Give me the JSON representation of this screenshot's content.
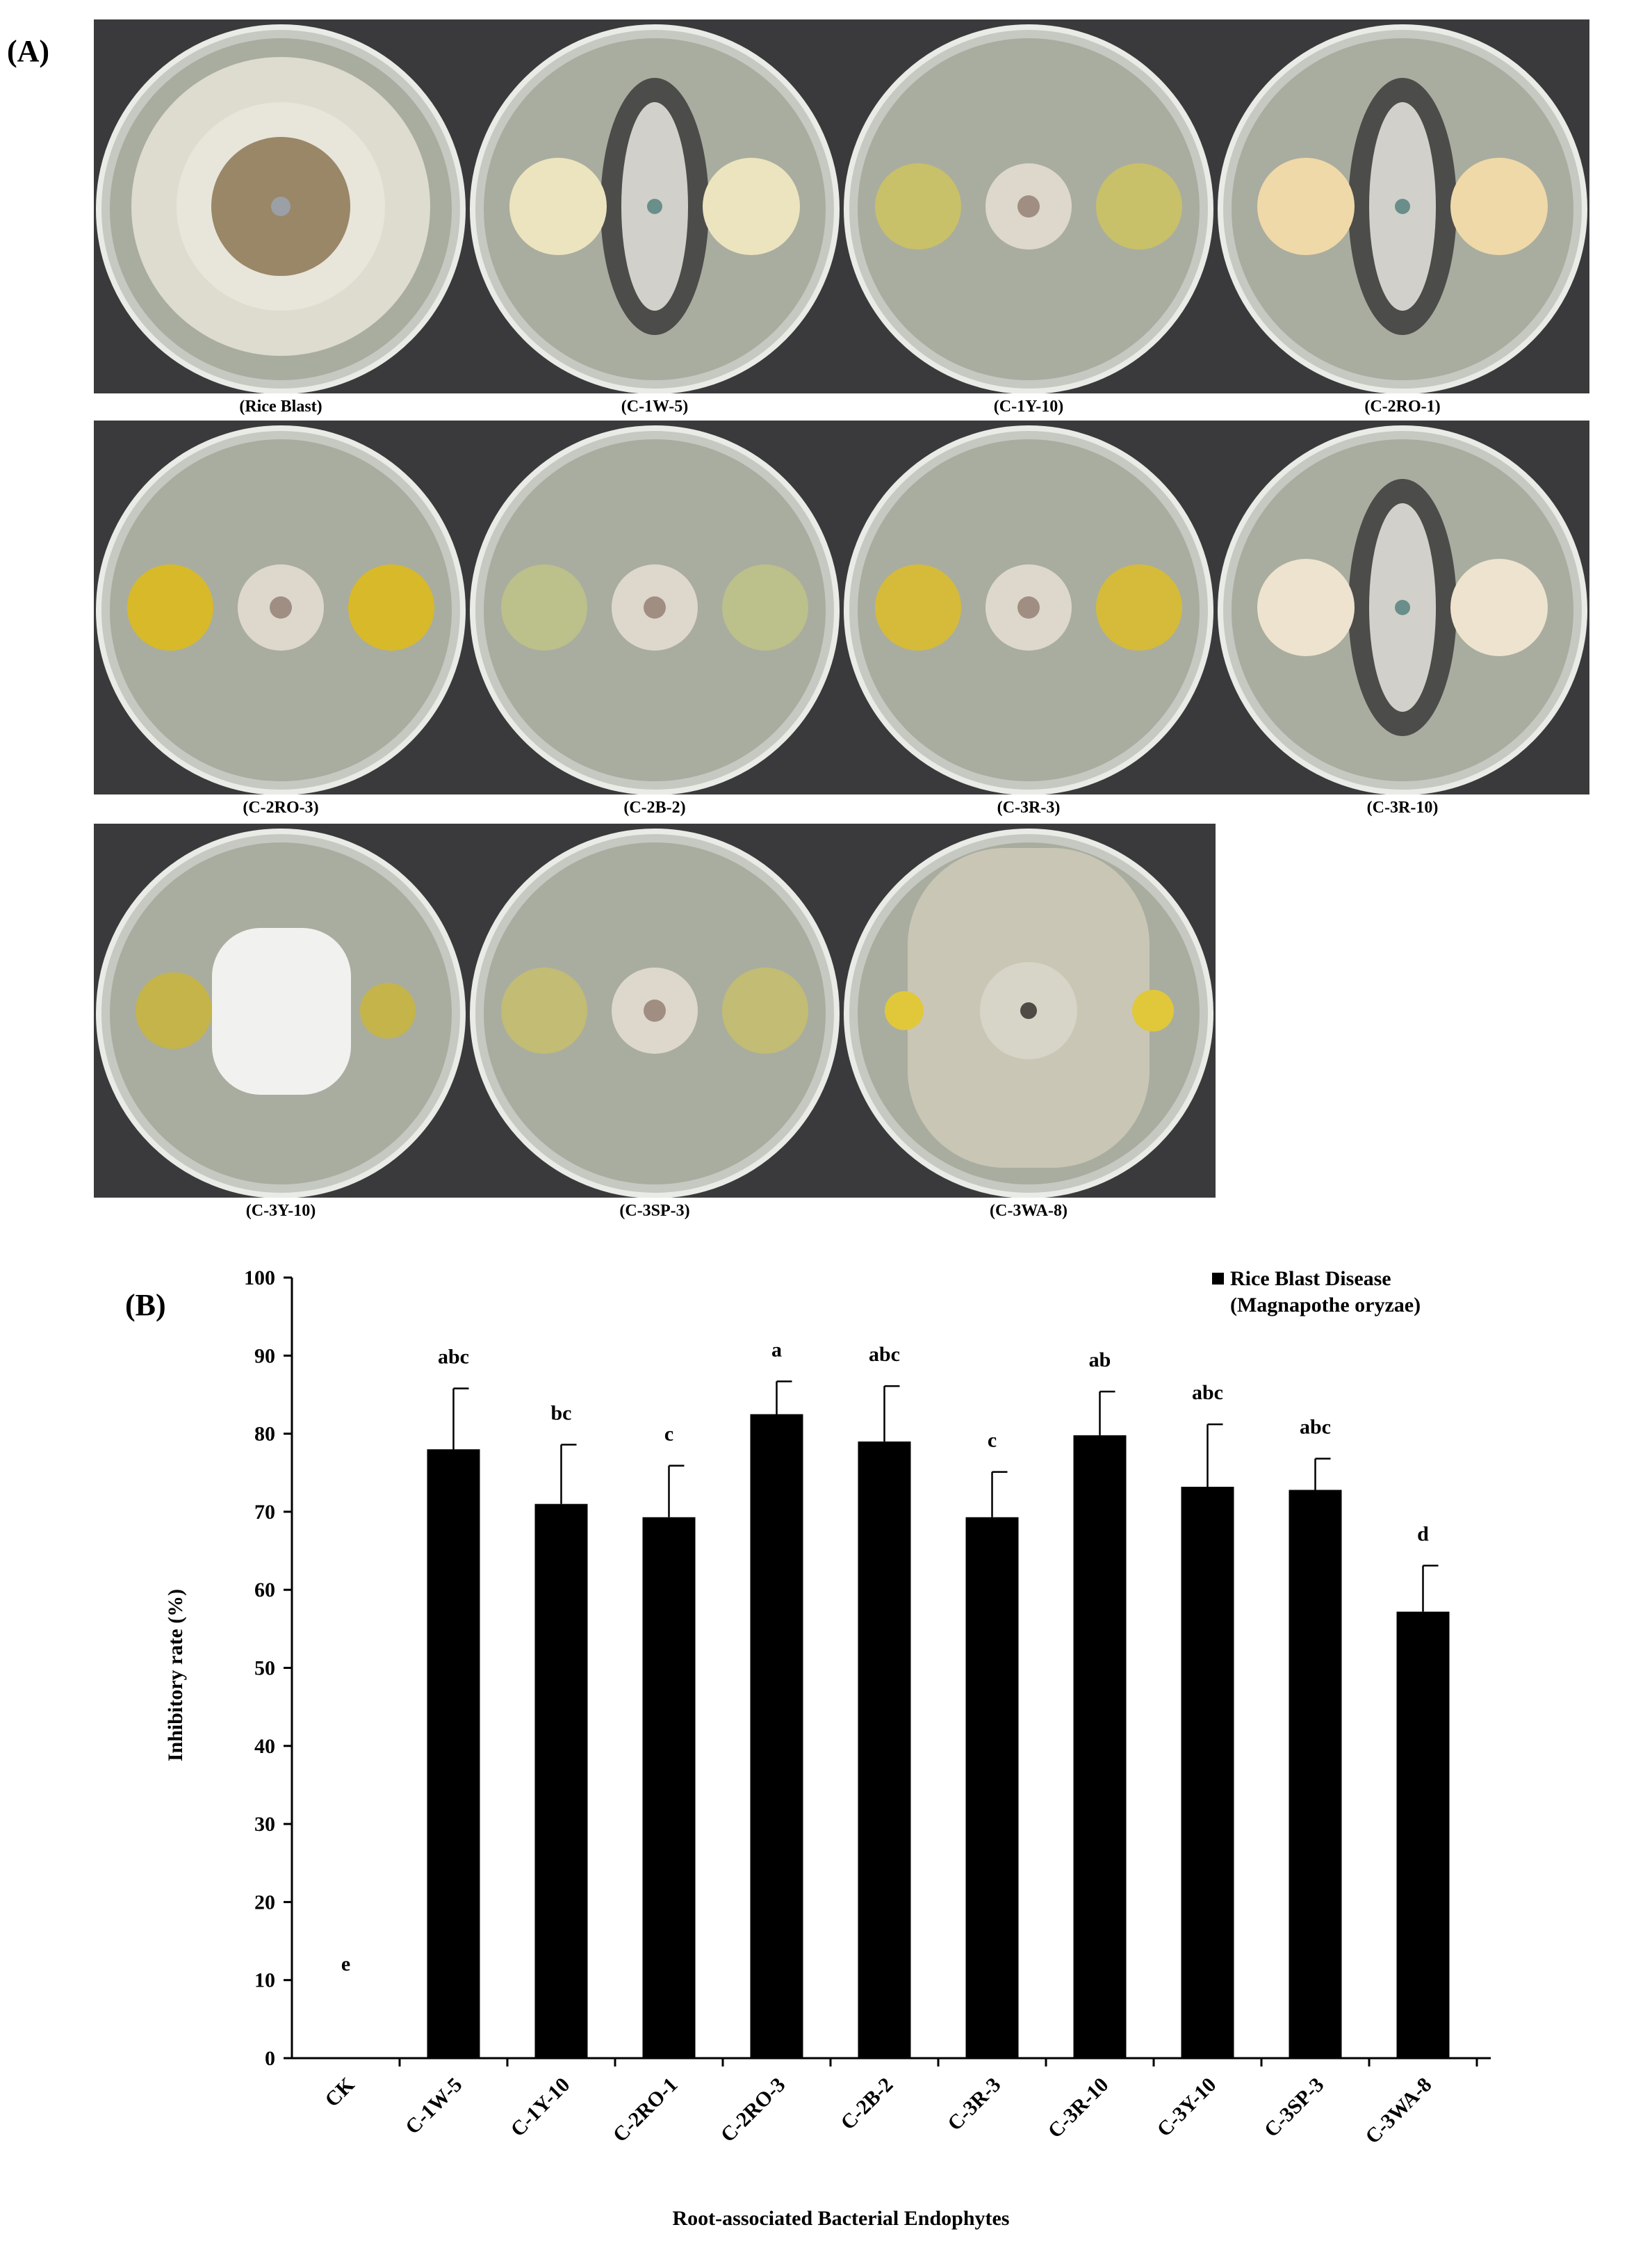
{
  "panel_a": {
    "label": "(A)",
    "plates": [
      {
        "caption": "(Rice Blast)",
        "kind": "control"
      },
      {
        "caption": "(C-1W-5)",
        "kind": "dark",
        "colony": "#ece4bf"
      },
      {
        "caption": "(C-1Y-10)",
        "kind": "small",
        "colony": "#c9c06a"
      },
      {
        "caption": "(C-2RO-1)",
        "kind": "dark",
        "colony": "#f0d9a8"
      },
      {
        "caption": "(C-2RO-3)",
        "kind": "small",
        "colony": "#d8b92a"
      },
      {
        "caption": "(C-2B-2)",
        "kind": "small",
        "colony": "#bcc08a"
      },
      {
        "caption": "(C-3R-3)",
        "kind": "small",
        "colony": "#d6bb3a"
      },
      {
        "caption": "(C-3R-10)",
        "kind": "dark",
        "colony": "#ede3cf"
      },
      {
        "caption": "(C-3Y-10)",
        "kind": "white",
        "colony": "#c4b44a"
      },
      {
        "caption": "(C-3SP-3)",
        "kind": "small",
        "colony": "#c2bc74"
      },
      {
        "caption": "(C-3WA-8)",
        "kind": "big",
        "colony": "#e0c83a"
      }
    ]
  },
  "panel_b": {
    "label": "(B)"
  },
  "chart_data": {
    "type": "bar",
    "xlabel": "Root-associated Bacterial Endophytes",
    "ylabel": "Inhibitory rate (%)",
    "ylim": [
      0,
      100
    ],
    "yticks": [
      "0",
      "10",
      "20",
      "30",
      "40",
      "50",
      "60",
      "70",
      "80",
      "90",
      "100"
    ],
    "categories": [
      "CK",
      "C-1W-5",
      "C-1Y-10",
      "C-2RO-1",
      "C-2RO-3",
      "C-2B-2",
      "C-3R-3",
      "C-3R-10",
      "C-3Y-10",
      "C-3SP-3",
      "C-3WA-8"
    ],
    "series": [
      {
        "name": "Rice Blast Disease",
        "name_line2": "(Magnapothe oryzae)",
        "values": [
          0,
          78,
          71,
          69.3,
          82.5,
          79,
          69.3,
          79.8,
          73.2,
          72.8,
          57.2
        ],
        "errors": [
          0,
          7.8,
          7.6,
          6.6,
          4.2,
          7.1,
          5.8,
          5.6,
          8,
          4,
          5.9
        ]
      }
    ],
    "significance_letters": [
      "e",
      "abc",
      "bc",
      "c",
      "a",
      "abc",
      "c",
      "ab",
      "abc",
      "abc",
      "d"
    ],
    "legend_position": "top-right",
    "grid": false,
    "colors": {
      "bar": "#000000",
      "ink": "#000000"
    }
  }
}
